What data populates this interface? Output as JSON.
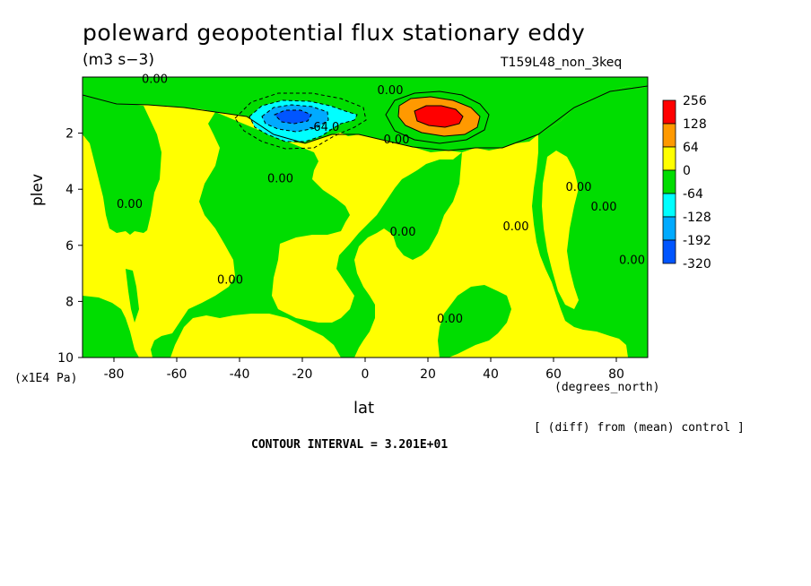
{
  "chart_data": {
    "type": "heatmap",
    "title": "poleward geopotential flux stationary eddy",
    "units": "(m3 s−3)",
    "run_label": "T159L48_non_3keq",
    "xlabel": "lat",
    "xunits": "(degrees_north)",
    "ylabel": "plev",
    "yunits": "(x1E4 Pa)",
    "xlim": [
      -90,
      90
    ],
    "ylim": [
      10,
      0
    ],
    "x_ticks": [
      "-80",
      "-60",
      "-40",
      "-20",
      "0",
      "20",
      "40",
      "60",
      "80"
    ],
    "x_tick_values": [
      -80,
      -60,
      -40,
      -20,
      0,
      20,
      40,
      60,
      80
    ],
    "y_ticks": [
      "2",
      "4",
      "6",
      "8",
      "10"
    ],
    "y_tick_values": [
      2,
      4,
      6,
      8,
      10
    ],
    "contour_interval_label": "CONTOUR INTERVAL = 3.201E+01",
    "footnote": "[ (diff) from (mean) control ]",
    "colorbar": {
      "labels": [
        "256",
        "128",
        "64",
        "0",
        "-64",
        "-128",
        "-192",
        "-320"
      ],
      "colors": [
        "#ff0000",
        "#ff9900",
        "#ffff00",
        "#00dd00",
        "#00ffff",
        "#00aaff",
        "#0055ff"
      ]
    },
    "contour_labels": [
      {
        "text": "0.00",
        "lat": -67,
        "plev": 0.05
      },
      {
        "text": "0.00",
        "lat": 8,
        "plev": 0.45
      },
      {
        "text": "-64.0",
        "lat": -13,
        "plev": 1.75
      },
      {
        "text": "0.00",
        "lat": 10,
        "plev": 2.2
      },
      {
        "text": "0.00",
        "lat": -27,
        "plev": 3.6
      },
      {
        "text": "0.00",
        "lat": -75,
        "plev": 4.5
      },
      {
        "text": "0.00",
        "lat": 12,
        "plev": 5.5
      },
      {
        "text": "0.00",
        "lat": 48,
        "plev": 5.3
      },
      {
        "text": "0.00",
        "lat": 68,
        "plev": 3.9
      },
      {
        "text": "0.00",
        "lat": 76,
        "plev": 4.6
      },
      {
        "text": "0.00",
        "lat": 85,
        "plev": 6.5
      },
      {
        "text": "0.00",
        "lat": -43,
        "plev": 7.2
      },
      {
        "text": "0.00",
        "lat": 27,
        "plev": 8.6
      }
    ],
    "features": [
      {
        "kind": "minimum",
        "lat": -24,
        "plev": 1.5,
        "value_min": -320
      },
      {
        "kind": "maximum",
        "lat": 24,
        "plev": 1.5,
        "value_max": 256
      }
    ]
  }
}
